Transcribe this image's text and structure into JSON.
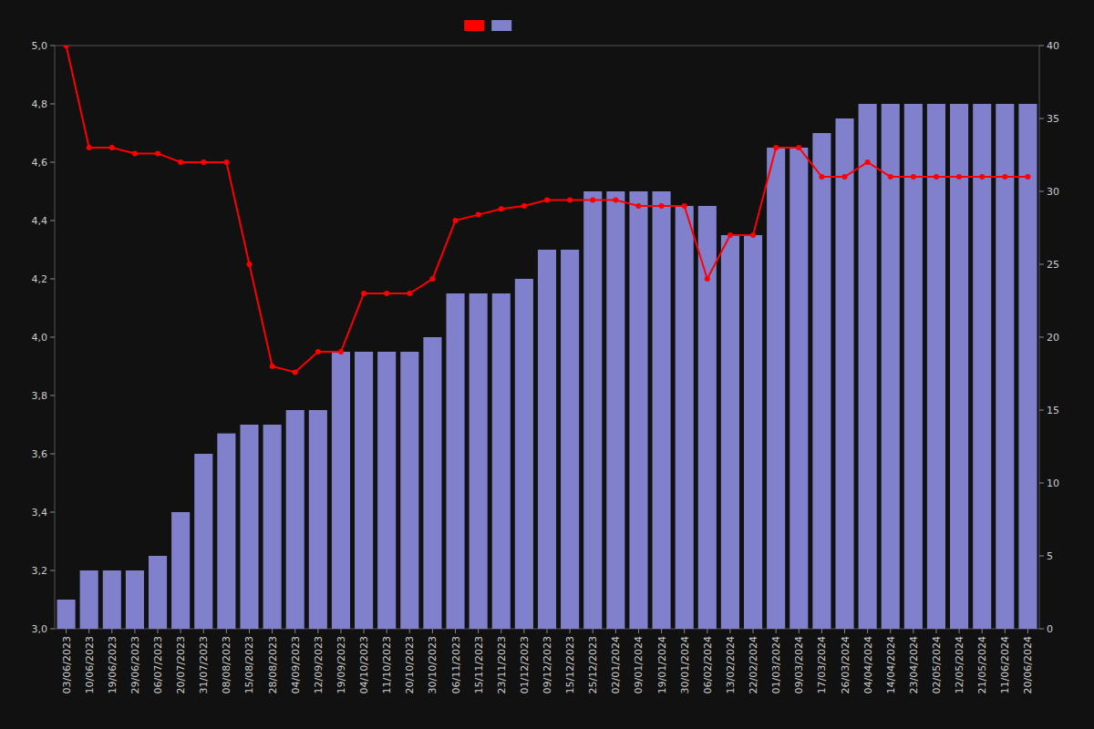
{
  "chart_data": {
    "type": "bar",
    "categories": [
      "03/06/2023",
      "10/06/2023",
      "19/06/2023",
      "29/06/2023",
      "06/07/2023",
      "20/07/2023",
      "31/07/2023",
      "08/08/2023",
      "15/08/2023",
      "28/08/2023",
      "04/09/2023",
      "12/09/2023",
      "19/09/2023",
      "04/10/2023",
      "11/10/2023",
      "20/10/2023",
      "30/10/2023",
      "06/11/2023",
      "15/11/2023",
      "23/11/2023",
      "01/12/2023",
      "09/12/2023",
      "15/12/2023",
      "25/12/2023",
      "02/01/2024",
      "09/01/2024",
      "19/01/2024",
      "30/01/2024",
      "06/02/2024",
      "13/02/2024",
      "22/02/2024",
      "01/03/2024",
      "09/03/2024",
      "17/03/2024",
      "26/03/2024",
      "04/04/2024",
      "14/04/2024",
      "23/04/2024",
      "02/05/2024",
      "12/05/2024",
      "21/05/2024",
      "11/06/2024",
      "20/06/2024"
    ],
    "series": [
      {
        "type": "bar",
        "color": "#8080cc",
        "values": [
          3.1,
          3.2,
          3.2,
          3.2,
          3.25,
          3.4,
          3.6,
          3.67,
          3.7,
          3.7,
          3.75,
          3.75,
          3.95,
          3.95,
          3.95,
          3.95,
          4.0,
          4.15,
          4.15,
          4.15,
          4.2,
          4.3,
          4.3,
          4.5,
          4.5,
          4.5,
          4.5,
          4.45,
          4.45,
          4.35,
          4.35,
          4.65,
          4.65,
          4.7,
          4.75,
          4.8,
          4.8,
          4.8,
          4.8,
          4.8,
          4.8,
          4.8,
          4.8
        ]
      },
      {
        "type": "line",
        "color": "#ff0000",
        "marker": "circle",
        "values": [
          5.0,
          4.65,
          4.65,
          4.63,
          4.63,
          4.6,
          4.6,
          4.6,
          4.25,
          3.9,
          3.88,
          3.95,
          3.95,
          4.15,
          4.15,
          4.15,
          4.2,
          4.4,
          4.42,
          4.44,
          4.45,
          4.47,
          4.47,
          4.47,
          4.47,
          4.45,
          4.45,
          4.45,
          4.2,
          4.35,
          4.35,
          4.65,
          4.65,
          4.55,
          4.55,
          4.6,
          4.55,
          4.55,
          4.55,
          4.55,
          4.55,
          4.55,
          4.55
        ]
      }
    ],
    "ylim": [
      3.0,
      5.0
    ],
    "yticks": [
      {
        "value": 3.0,
        "label": "3,0"
      },
      {
        "value": 3.2,
        "label": "3,2"
      },
      {
        "value": 3.4,
        "label": "3,4"
      },
      {
        "value": 3.6,
        "label": "3,6"
      },
      {
        "value": 3.8,
        "label": "3,8"
      },
      {
        "value": 4.0,
        "label": "4,0"
      },
      {
        "value": 4.2,
        "label": "4,2"
      },
      {
        "value": 4.4,
        "label": "4,4"
      },
      {
        "value": 4.6,
        "label": "4,6"
      },
      {
        "value": 4.8,
        "label": "4,8"
      },
      {
        "value": 5.0,
        "label": "5,0"
      }
    ],
    "y2lim": [
      0,
      40
    ],
    "y2ticks": [
      0,
      5,
      10,
      15,
      20,
      25,
      30,
      35,
      40
    ],
    "legend": "upper center"
  }
}
